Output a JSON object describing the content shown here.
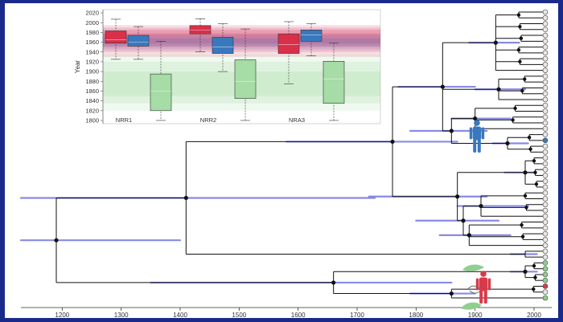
{
  "colors": {
    "frame_border": "#1a2a8a",
    "branch": "#111111",
    "hpd_bar": "#7b7fe3",
    "node": "#111111",
    "tip": "#e8e8e8",
    "human": "#3a78be",
    "red_human": "#d93a4a",
    "plant": "#8fcf8f",
    "box_red": "#d9304a",
    "box_blue": "#3a78be",
    "box_green": "#a6dca6"
  },
  "icons": [
    "blue-human-silhouette-icon",
    "red-human-silhouette-icon",
    "green-plant-leaf-icon"
  ],
  "chart_data": [
    {
      "type": "phylogenetic-tree",
      "xlim": [
        1130,
        2030
      ],
      "x_ticks": [
        1200,
        1300,
        1400,
        1500,
        1600,
        1700,
        1800,
        1900,
        2000
      ],
      "root_year": 1190,
      "internal_nodes": [
        {
          "year": 1190,
          "hpd": [
            1130,
            1400
          ]
        },
        {
          "year": 1410,
          "hpd": [
            1130,
            1730
          ]
        },
        {
          "year": 1760,
          "hpd": [
            1580,
            1870
          ]
        },
        {
          "year": 1660,
          "hpd": [
            1350,
            1860
          ]
        },
        {
          "year": 1860,
          "hpd": [
            1790,
            1900
          ]
        },
        {
          "year": 1890,
          "hpd": [
            1840,
            1950
          ]
        }
      ],
      "tip_count": 50,
      "tip_year": 2015
    },
    {
      "type": "box",
      "ylabel": "Year",
      "ylim": [
        1800,
        2020
      ],
      "y_ticks": [
        1800,
        1820,
        1840,
        1860,
        1880,
        1900,
        1920,
        1940,
        1960,
        1980,
        2000,
        2020
      ],
      "categories": [
        "NRR1",
        "NRR2",
        "NRA3"
      ],
      "series": [
        {
          "color": "red",
          "boxes": [
            {
              "whisker_low": 1925,
              "q1": 1958,
              "median": 1965,
              "q3": 1983,
              "whisker_high": 2007
            },
            {
              "whisker_low": 1940,
              "q1": 1977,
              "median": 1985,
              "q3": 1994,
              "whisker_high": 2008
            },
            {
              "whisker_low": 1875,
              "q1": 1937,
              "median": 1955,
              "q3": 1977,
              "whisker_high": 2002
            }
          ]
        },
        {
          "color": "blue",
          "boxes": [
            {
              "whisker_low": 1925,
              "q1": 1952,
              "median": 1960,
              "q3": 1974,
              "whisker_high": 1992
            },
            {
              "whisker_low": 1900,
              "q1": 1937,
              "median": 1950,
              "q3": 1970,
              "whisker_high": 1998
            },
            {
              "whisker_low": 1932,
              "q1": 1962,
              "median": 1975,
              "q3": 1985,
              "whisker_high": 1998
            }
          ]
        },
        {
          "color": "green",
          "boxes": [
            {
              "whisker_low": 1800,
              "q1": 1820,
              "median": 1860,
              "q3": 1895,
              "whisker_high": 1962
            },
            {
              "whisker_low": 1800,
              "q1": 1845,
              "median": 1880,
              "q3": 1924,
              "whisker_high": 1987
            },
            {
              "whisker_low": 1800,
              "q1": 1835,
              "median": 1885,
              "q3": 1921,
              "whisker_high": 1958
            }
          ]
        }
      ]
    }
  ]
}
